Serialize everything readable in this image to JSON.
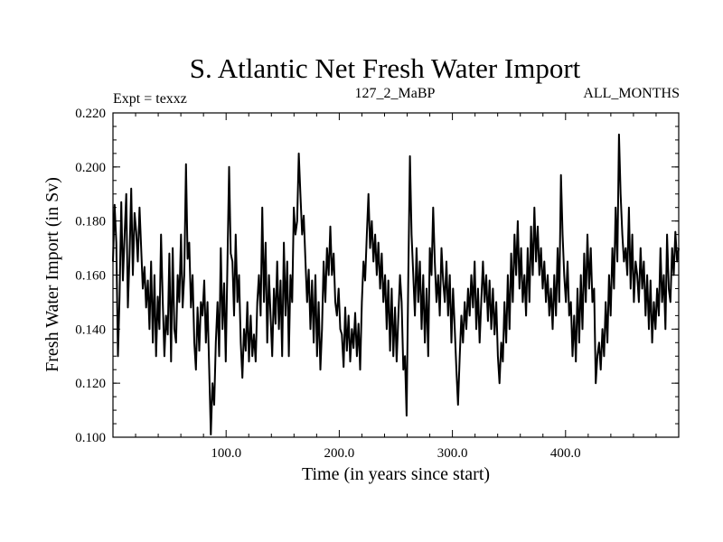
{
  "chart_data": {
    "type": "line",
    "title": "S. Atlantic Net Fresh Water Import",
    "subtitle_left": "Expt = texxz",
    "subtitle_center": "127_2_MaBP",
    "subtitle_right": "ALL_MONTHS",
    "xlabel": "Time (in years since start)",
    "ylabel": "Fresh Water Import (in Sv)",
    "xlim": [
      0,
      500
    ],
    "ylim": [
      0.1,
      0.22
    ],
    "x_ticks": [
      100,
      200,
      300,
      400
    ],
    "x_tick_labels": [
      "100.0",
      "200.0",
      "300.0",
      "400.0"
    ],
    "y_ticks": [
      0.1,
      0.12,
      0.14,
      0.16,
      0.18,
      0.2,
      0.22
    ],
    "y_tick_labels": [
      "0.100",
      "0.120",
      "0.140",
      "0.160",
      "0.180",
      "0.200",
      "0.220"
    ],
    "series": [
      {
        "name": "S. Atlantic Net Fresh Water Import",
        "x_start": 0,
        "x_end": 500,
        "values": [
          0.165,
          0.186,
          0.172,
          0.13,
          0.152,
          0.187,
          0.158,
          0.175,
          0.19,
          0.148,
          0.168,
          0.192,
          0.16,
          0.183,
          0.176,
          0.165,
          0.185,
          0.17,
          0.155,
          0.163,
          0.148,
          0.158,
          0.14,
          0.165,
          0.135,
          0.16,
          0.13,
          0.152,
          0.14,
          0.175,
          0.15,
          0.13,
          0.145,
          0.138,
          0.168,
          0.128,
          0.17,
          0.14,
          0.135,
          0.16,
          0.15,
          0.175,
          0.148,
          0.16,
          0.201,
          0.166,
          0.172,
          0.148,
          0.16,
          0.135,
          0.125,
          0.148,
          0.132,
          0.15,
          0.145,
          0.158,
          0.135,
          0.15,
          0.125,
          0.101,
          0.12,
          0.112,
          0.135,
          0.15,
          0.13,
          0.17,
          0.14,
          0.157,
          0.128,
          0.165,
          0.2,
          0.168,
          0.165,
          0.145,
          0.175,
          0.15,
          0.16,
          0.135,
          0.122,
          0.14,
          0.132,
          0.15,
          0.128,
          0.145,
          0.13,
          0.138,
          0.128,
          0.15,
          0.16,
          0.145,
          0.185,
          0.15,
          0.172,
          0.135,
          0.16,
          0.145,
          0.13,
          0.155,
          0.142,
          0.165,
          0.14,
          0.158,
          0.13,
          0.172,
          0.145,
          0.165,
          0.13,
          0.16,
          0.15,
          0.185,
          0.175,
          0.18,
          0.205,
          0.19,
          0.175,
          0.182,
          0.165,
          0.15,
          0.162,
          0.14,
          0.158,
          0.135,
          0.16,
          0.13,
          0.15,
          0.125,
          0.14,
          0.165,
          0.15,
          0.17,
          0.16,
          0.178,
          0.16,
          0.168,
          0.15,
          0.145,
          0.155,
          0.14,
          0.138,
          0.126,
          0.148,
          0.132,
          0.145,
          0.128,
          0.14,
          0.133,
          0.146,
          0.13,
          0.142,
          0.125,
          0.15,
          0.165,
          0.158,
          0.175,
          0.19,
          0.17,
          0.18,
          0.165,
          0.175,
          0.16,
          0.172,
          0.155,
          0.168,
          0.15,
          0.16,
          0.14,
          0.158,
          0.132,
          0.155,
          0.13,
          0.148,
          0.128,
          0.145,
          0.16,
          0.15,
          0.125,
          0.13,
          0.108,
          0.16,
          0.204,
          0.175,
          0.16,
          0.145,
          0.17,
          0.15,
          0.165,
          0.14,
          0.16,
          0.135,
          0.155,
          0.13,
          0.17,
          0.16,
          0.185,
          0.165,
          0.15,
          0.16,
          0.145,
          0.17,
          0.158,
          0.15,
          0.165,
          0.145,
          0.16,
          0.135,
          0.155,
          0.14,
          0.125,
          0.112,
          0.13,
          0.145,
          0.135,
          0.15,
          0.14,
          0.155,
          0.145,
          0.16,
          0.148,
          0.165,
          0.14,
          0.155,
          0.135,
          0.15,
          0.165,
          0.15,
          0.16,
          0.143,
          0.158,
          0.14,
          0.155,
          0.138,
          0.15,
          0.13,
          0.12,
          0.135,
          0.128,
          0.15,
          0.135,
          0.16,
          0.14,
          0.168,
          0.15,
          0.175,
          0.16,
          0.18,
          0.155,
          0.17,
          0.15,
          0.16,
          0.145,
          0.17,
          0.15,
          0.178,
          0.16,
          0.185,
          0.165,
          0.178,
          0.16,
          0.17,
          0.155,
          0.165,
          0.15,
          0.16,
          0.145,
          0.155,
          0.14,
          0.16,
          0.145,
          0.17,
          0.15,
          0.197,
          0.175,
          0.16,
          0.15,
          0.165,
          0.145,
          0.15,
          0.13,
          0.145,
          0.128,
          0.155,
          0.135,
          0.16,
          0.14,
          0.168,
          0.15,
          0.175,
          0.155,
          0.17,
          0.15,
          0.155,
          0.12,
          0.13,
          0.135,
          0.125,
          0.14,
          0.13,
          0.15,
          0.135,
          0.16,
          0.145,
          0.17,
          0.155,
          0.185,
          0.165,
          0.212,
          0.19,
          0.175,
          0.165,
          0.17,
          0.16,
          0.185,
          0.155,
          0.175,
          0.15,
          0.165,
          0.16,
          0.15,
          0.17,
          0.155,
          0.165,
          0.145,
          0.16,
          0.14,
          0.158,
          0.135,
          0.15,
          0.14,
          0.155,
          0.145,
          0.17,
          0.15,
          0.16,
          0.14,
          0.175,
          0.155,
          0.15,
          0.17,
          0.16,
          0.176,
          0.165,
          0.17
        ]
      }
    ]
  }
}
